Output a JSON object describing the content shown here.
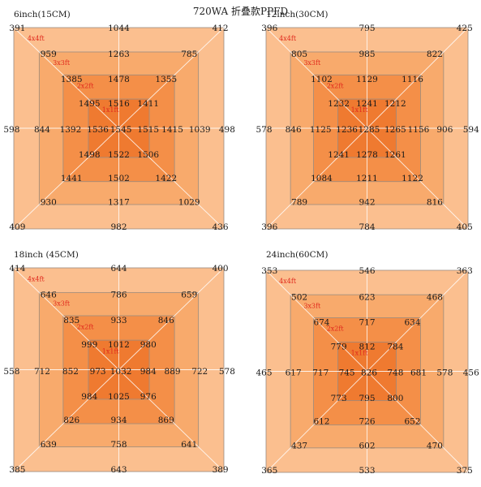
{
  "title": "720WA 折叠款PPFD",
  "colors": {
    "z4": "#fbbf8f",
    "z3": "#f8aa6c",
    "z2": "#f48f48",
    "z1": "#ef7a30",
    "line": "#ffffff",
    "border": "#9a8c80",
    "label": "#e0281c"
  },
  "chart_data": [
    {
      "type": "heatmap",
      "title": "6inch(15CM)",
      "zones": [
        "4x4ft",
        "3x3ft",
        "2x2ft",
        "1x1ft"
      ],
      "grid": [
        [
          391,
          null,
          null,
          1044,
          null,
          null,
          412
        ],
        [
          null,
          959,
          null,
          1263,
          null,
          785,
          null
        ],
        [
          null,
          null,
          1385,
          1478,
          1355,
          null,
          null
        ],
        [
          null,
          null,
          1495,
          1516,
          1411,
          null,
          null
        ],
        [
          598,
          844,
          1392,
          1536,
          1545,
          1515,
          1415,
          1039,
          498
        ],
        [
          null,
          null,
          1498,
          1522,
          1506,
          null,
          null
        ],
        [
          null,
          null,
          1441,
          1502,
          1422,
          null,
          null
        ],
        [
          null,
          930,
          null,
          1317,
          null,
          1029,
          null
        ],
        [
          409,
          null,
          null,
          982,
          null,
          null,
          436
        ]
      ]
    },
    {
      "type": "heatmap",
      "title": "12inch(30CM)",
      "zones": [
        "4x4ft",
        "3x3ft",
        "2x2ft",
        "1x1ft"
      ],
      "grid": [
        [
          396,
          null,
          null,
          795,
          null,
          null,
          425
        ],
        [
          null,
          805,
          null,
          985,
          null,
          822,
          null
        ],
        [
          null,
          null,
          1102,
          1129,
          1116,
          null,
          null
        ],
        [
          null,
          null,
          1232,
          1241,
          1212,
          null,
          null
        ],
        [
          578,
          846,
          1125,
          1236,
          1285,
          1265,
          1156,
          906,
          594
        ],
        [
          null,
          null,
          1241,
          1278,
          1261,
          null,
          null
        ],
        [
          null,
          null,
          1084,
          1211,
          1122,
          null,
          null
        ],
        [
          null,
          789,
          null,
          942,
          null,
          816,
          null
        ],
        [
          396,
          null,
          null,
          784,
          null,
          null,
          405
        ]
      ]
    },
    {
      "type": "heatmap",
      "title": "18inch (45CM)",
      "zones": [
        "4x4ft",
        "3x3ft",
        "2x2ft",
        "1x1ft"
      ],
      "grid": [
        [
          414,
          null,
          null,
          644,
          null,
          null,
          400
        ],
        [
          null,
          646,
          null,
          786,
          null,
          659,
          null
        ],
        [
          null,
          null,
          835,
          933,
          846,
          null,
          null
        ],
        [
          null,
          null,
          999,
          1012,
          980,
          null,
          null
        ],
        [
          558,
          712,
          852,
          973,
          1032,
          984,
          889,
          722,
          578
        ],
        [
          null,
          null,
          984,
          1025,
          976,
          null,
          null
        ],
        [
          null,
          null,
          826,
          934,
          869,
          null,
          null
        ],
        [
          null,
          639,
          null,
          758,
          null,
          641,
          null
        ],
        [
          385,
          null,
          null,
          643,
          null,
          null,
          389
        ]
      ]
    },
    {
      "type": "heatmap",
      "title": "24inch(60CM)",
      "zones": [
        "4x4ft",
        "3x3ft",
        "2x2ft",
        "1x1ft"
      ],
      "grid": [
        [
          353,
          null,
          null,
          546,
          null,
          null,
          363
        ],
        [
          null,
          502,
          null,
          623,
          null,
          468,
          null
        ],
        [
          null,
          null,
          674,
          717,
          634,
          null,
          null
        ],
        [
          null,
          null,
          779,
          812,
          784,
          null,
          null
        ],
        [
          465,
          617,
          717,
          745,
          826,
          748,
          681,
          578,
          456
        ],
        [
          null,
          null,
          773,
          795,
          800,
          null,
          null
        ],
        [
          null,
          null,
          612,
          726,
          652,
          null,
          null
        ],
        [
          null,
          437,
          null,
          602,
          null,
          470,
          null
        ],
        [
          365,
          null,
          null,
          533,
          null,
          null,
          375
        ]
      ]
    }
  ]
}
